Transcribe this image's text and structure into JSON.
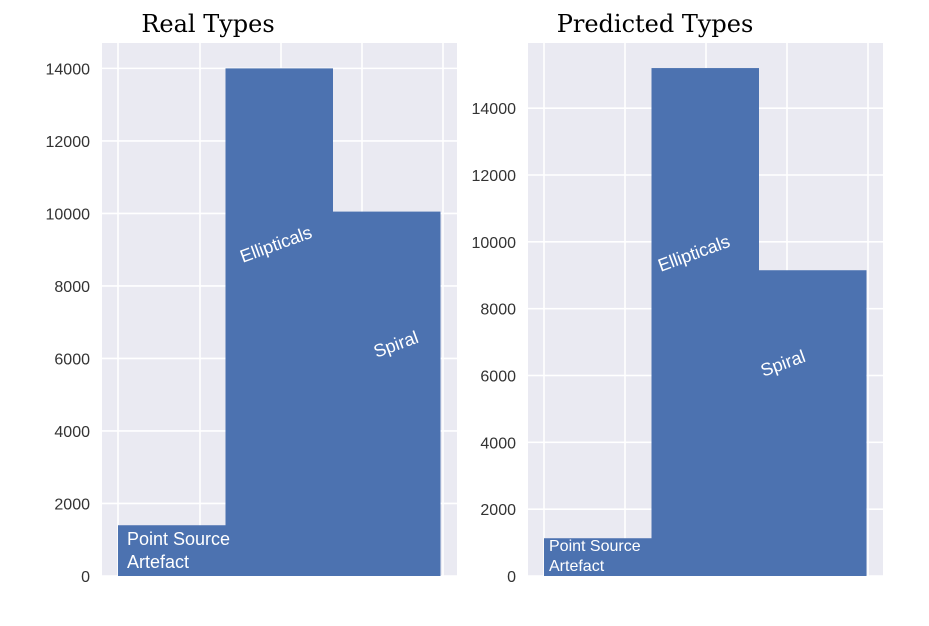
{
  "chart_data": [
    {
      "type": "bar",
      "title": "Real Types",
      "xlabel": "",
      "ylabel": "",
      "ylim": [
        0,
        14700
      ],
      "yticks": [
        0,
        2000,
        4000,
        6000,
        8000,
        10000,
        12000,
        14000
      ],
      "grid": true,
      "bars": [
        {
          "label_lines": [
            "Point Source",
            "Artefact"
          ],
          "value": 1400
        },
        {
          "label_lines": [
            "Ellipticals"
          ],
          "value": 14000
        },
        {
          "label_lines": [
            "Spiral"
          ],
          "value": 10050
        }
      ]
    },
    {
      "type": "bar",
      "title": "Predicted Types",
      "xlabel": "",
      "ylabel": "",
      "ylim": [
        0,
        15950
      ],
      "yticks": [
        0,
        2000,
        4000,
        6000,
        8000,
        10000,
        12000,
        14000
      ],
      "grid": true,
      "bars": [
        {
          "label_lines": [
            "Point Source",
            "Artefact"
          ],
          "value": 1130
        },
        {
          "label_lines": [
            "Ellipticals"
          ],
          "value": 15200
        },
        {
          "label_lines": [
            "Spiral"
          ],
          "value": 9150
        }
      ]
    }
  ],
  "colors": {
    "bar": "#4c72b0",
    "plot_background": "#eaeaf2",
    "grid": "#ffffff",
    "tick_text": "#333333",
    "bar_text": "#ffffff"
  }
}
